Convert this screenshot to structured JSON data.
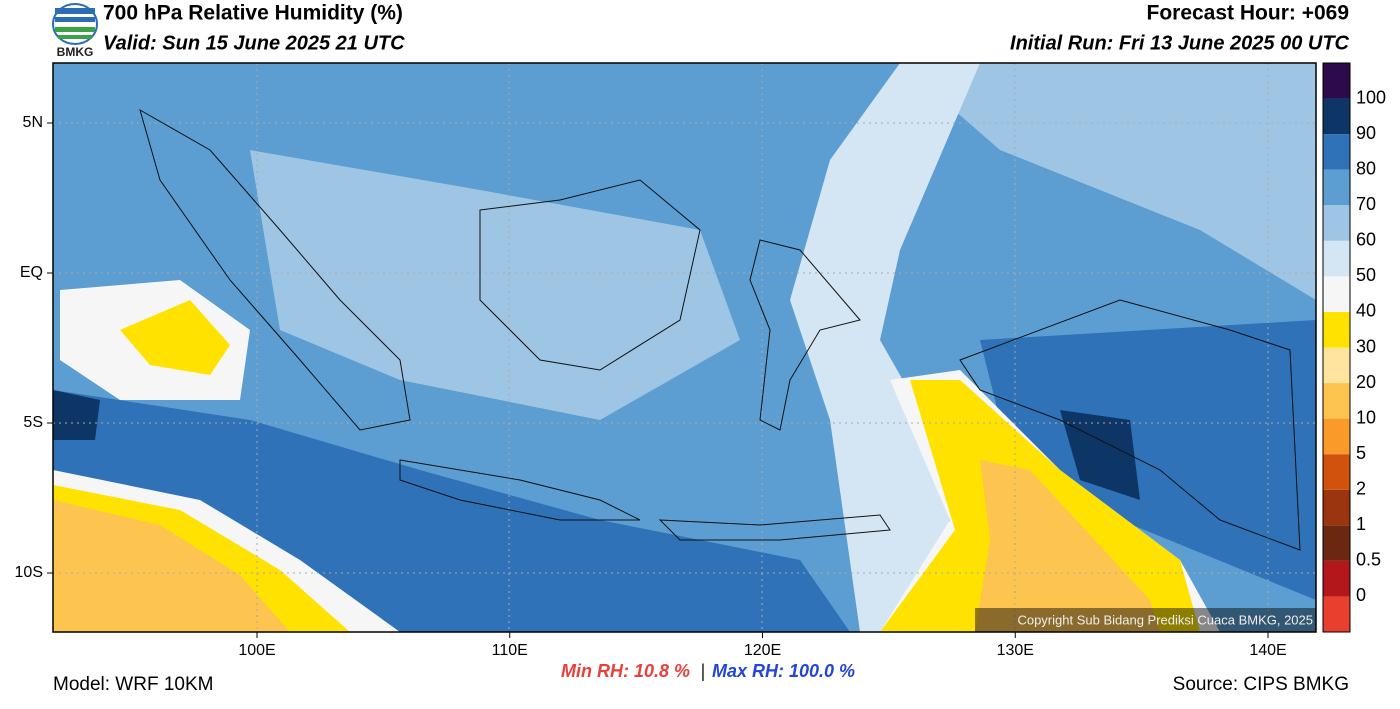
{
  "header": {
    "title": "700 hPa Relative Humidity (%)",
    "valid": "Valid: Sun 15 June 2025 21 UTC",
    "forecast_hour": "Forecast Hour: +069",
    "initial_run": "Initial Run: Fri 13 June 2025 00 UTC",
    "logo_text": "BMKG"
  },
  "map": {
    "lat_labels": [
      "5N",
      "EQ",
      "5S",
      "10S"
    ],
    "lon_labels": [
      "100E",
      "110E",
      "120E",
      "130E",
      "140E"
    ],
    "copyright": "Copyright Sub Bidang Prediksi Cuaca BMKG, 2025"
  },
  "colorbar": {
    "labels": [
      "0",
      "0.5",
      "1",
      "2",
      "5",
      "10",
      "20",
      "30",
      "40",
      "50",
      "60",
      "70",
      "80",
      "90",
      "100"
    ],
    "colors": [
      "#e8402f",
      "#b3161b",
      "#6b2710",
      "#9a3510",
      "#d0520c",
      "#f99a29",
      "#fdc450",
      "#fee49c",
      "#ffe200",
      "#f6f6f6",
      "#d4e6f3",
      "#9ec6e4",
      "#5c9ed1",
      "#2f72b8",
      "#0d3566",
      "#2c0a4c"
    ]
  },
  "footer": {
    "model": "Model: WRF 10KM",
    "min_rh": "Min RH:  10.8 %",
    "separator": "|",
    "max_rh": "Max RH: 100.0 %",
    "source": "Source: CIPS BMKG"
  }
}
